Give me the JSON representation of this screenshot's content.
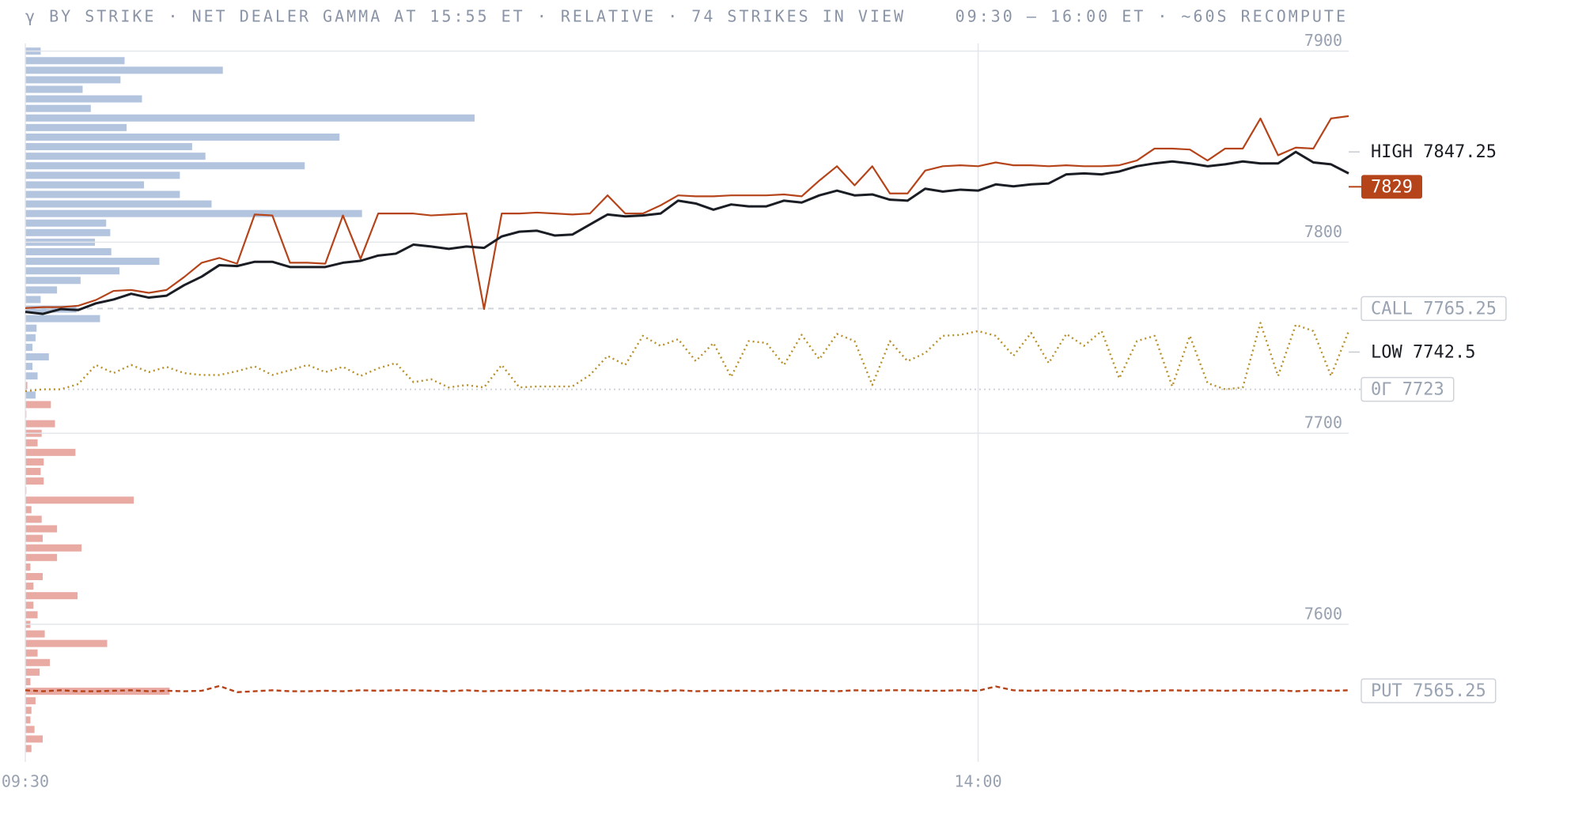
{
  "chart_data": {
    "type": "line",
    "title": "γ BY STRIKE · NET DEALER GAMMA AT 15:55 ET · RELATIVE · 74 STRIKES IN VIEW",
    "subtitle": "09:30 – 16:00 ET · ~60S RECOMPUTE",
    "x": [
      "09:30",
      "09:35",
      "09:40",
      "09:45",
      "09:50",
      "09:55",
      "10:00",
      "10:05",
      "10:10",
      "10:15",
      "10:20",
      "10:25",
      "10:30",
      "10:35",
      "10:40",
      "10:45",
      "10:50",
      "10:55",
      "11:00",
      "11:05",
      "11:10",
      "11:15",
      "11:20",
      "11:25",
      "11:30",
      "11:35",
      "11:40",
      "11:45",
      "11:50",
      "11:55",
      "12:00",
      "12:05",
      "12:10",
      "12:15",
      "12:20",
      "12:25",
      "12:30",
      "12:35",
      "12:40",
      "12:45",
      "12:50",
      "12:55",
      "13:00",
      "13:05",
      "13:10",
      "13:15",
      "13:20",
      "13:25",
      "13:30",
      "13:35",
      "13:40",
      "13:45",
      "13:50",
      "13:55",
      "14:00",
      "14:05",
      "14:10",
      "14:15",
      "14:20",
      "14:25",
      "14:30",
      "14:35",
      "14:40",
      "14:45",
      "14:50",
      "14:55",
      "15:00",
      "15:05",
      "15:10",
      "15:15",
      "15:20",
      "15:25",
      "15:30",
      "15:35",
      "15:40",
      "15:45"
    ],
    "xlim": [
      "09:30",
      "15:45"
    ],
    "xticks": [
      "09:30",
      "14:00"
    ],
    "ylim": [
      7528,
      7904
    ],
    "yticks": [
      7900,
      7800,
      7700,
      7600
    ],
    "grid": true,
    "series": [
      {
        "color": "#b8902a",
        "dash": "dotted",
        "values": [
          7722,
          7723,
          7723,
          7725.75,
          7735.75,
          7731.5,
          7735.75,
          7732,
          7734.75,
          7731.5,
          7730.5,
          7730.5,
          7732.5,
          7735,
          7730.5,
          7733,
          7735.75,
          7732,
          7734.75,
          7730,
          7734,
          7736.75,
          7726.75,
          7728.25,
          7724,
          7725.25,
          7724,
          7735.75,
          7724,
          7724.5,
          7724.5,
          7724.5,
          7730.5,
          7740.5,
          7735.75,
          7751,
          7745.75,
          7749.25,
          7737.75,
          7747.25,
          7729.5,
          7748.25,
          7747.25,
          7735.75,
          7751.5,
          7738.75,
          7752,
          7748.25,
          7725.25,
          7748.25,
          7737.75,
          7742,
          7751,
          7751.5,
          7753.5,
          7751,
          7740.5,
          7752.5,
          7736.75,
          7752,
          7745.75,
          7753.5,
          7728.75,
          7748.25,
          7751,
          7724.5,
          7751,
          7726.25,
          7723,
          7724,
          7757.75,
          7730,
          7756.75,
          7753.5,
          7730,
          7753.5
        ]
      },
      {
        "color": "#b5441a",
        "dash": "dashed",
        "values": [
          7565.5,
          7565,
          7565.5,
          7565,
          7565,
          7565.25,
          7565.5,
          7565,
          7565.25,
          7565,
          7565.25,
          7567.75,
          7564.5,
          7565,
          7565.5,
          7565,
          7565,
          7565.25,
          7565,
          7565.5,
          7565.25,
          7565.5,
          7565.5,
          7565.25,
          7565,
          7565.5,
          7565,
          7565.25,
          7565.25,
          7565.5,
          7565.25,
          7565,
          7565.5,
          7565.25,
          7565.25,
          7565.5,
          7565,
          7565.5,
          7565,
          7565.25,
          7565.25,
          7565.25,
          7565,
          7565.5,
          7565.25,
          7565.25,
          7565,
          7565.5,
          7565.25,
          7565.5,
          7565.5,
          7565.25,
          7565.25,
          7565.5,
          7565.25,
          7567.5,
          7565.5,
          7565.25,
          7565.5,
          7565.25,
          7565.5,
          7565.25,
          7565.5,
          7565,
          7565.25,
          7565.5,
          7565.25,
          7565.5,
          7565.25,
          7565.5,
          7565.25,
          7565.5,
          7565,
          7565.5,
          7565.25,
          7565.5
        ]
      },
      {
        "color": "#b5441a",
        "dash": "solid",
        "values": [
          7765.5,
          7766,
          7766,
          7766.75,
          7769.75,
          7774.5,
          7775,
          7773.5,
          7775,
          7781.75,
          7789.25,
          7791.75,
          7788.75,
          7814.5,
          7814,
          7789.25,
          7789.25,
          7788.75,
          7814,
          7791.25,
          7815,
          7815,
          7815,
          7814,
          7814.5,
          7815,
          7765,
          7815,
          7815,
          7815.5,
          7815,
          7814.5,
          7815,
          7824.5,
          7815,
          7815,
          7819.25,
          7824.5,
          7824,
          7824,
          7824.5,
          7824.5,
          7824.5,
          7825,
          7824,
          7832.25,
          7839.75,
          7829.75,
          7839.75,
          7825.5,
          7825.5,
          7837.5,
          7839.75,
          7840.25,
          7839.75,
          7841.75,
          7840.25,
          7840.25,
          7839.75,
          7840.25,
          7839.75,
          7839.75,
          7840.25,
          7842.75,
          7849,
          7849,
          7848.5,
          7842.75,
          7849,
          7849,
          7864.75,
          7845.5,
          7849.5,
          7849,
          7864.75,
          7866
        ]
      },
      {
        "color": "#1a1d24",
        "dash": "solid",
        "values": [
          7763.5,
          7762.5,
          7765,
          7764.5,
          7768,
          7770,
          7773,
          7771,
          7772,
          7777.5,
          7782,
          7788,
          7787.5,
          7789.75,
          7789.75,
          7787,
          7787,
          7787,
          7789.25,
          7790.25,
          7793,
          7794,
          7798.75,
          7797.75,
          7796.5,
          7797.75,
          7797,
          7803,
          7805.5,
          7806,
          7803.5,
          7804,
          7809.25,
          7814.5,
          7813.5,
          7814,
          7815,
          7821.75,
          7820.25,
          7817,
          7819.75,
          7818.75,
          7818.75,
          7821.75,
          7820.75,
          7824.5,
          7827,
          7824.5,
          7825,
          7822.25,
          7821.75,
          7828,
          7826.5,
          7827.5,
          7827,
          7830.25,
          7829.25,
          7830.25,
          7830.75,
          7835.5,
          7836,
          7835.5,
          7837,
          7839.75,
          7841.25,
          7842.25,
          7841.25,
          7839.75,
          7840.75,
          7842.25,
          7841.25,
          7841.25,
          7847.25,
          7841.75,
          7840.75,
          7836
        ]
      }
    ],
    "strike_bars": {
      "positive_color": "#b3c4de",
      "negative_color": "#e8aaa3",
      "strikes": [
        7900,
        7895,
        7890,
        7885,
        7880,
        7875,
        7870,
        7865,
        7860,
        7855,
        7850,
        7845,
        7840,
        7835,
        7830,
        7825,
        7820,
        7815,
        7810,
        7805,
        7800,
        7795,
        7790,
        7785,
        7780,
        7775,
        7770,
        7765,
        7760,
        7755,
        7750,
        7745,
        7740,
        7735,
        7730,
        7725,
        7720,
        7715,
        7710,
        7705,
        7700,
        7695,
        7690,
        7685,
        7680,
        7675,
        7670,
        7665,
        7660,
        7655,
        7650,
        7645,
        7640,
        7635,
        7630,
        7625,
        7620,
        7615,
        7610,
        7605,
        7600,
        7595,
        7590,
        7585,
        7580,
        7575,
        7570,
        7565,
        7560,
        7555,
        7550,
        7545,
        7540,
        7535
      ],
      "values": [
        15,
        97,
        193,
        93,
        56,
        114,
        64,
        439,
        99,
        307,
        163,
        176,
        273,
        151,
        116,
        151,
        182,
        329,
        79,
        83,
        68,
        84,
        131,
        92,
        54,
        31,
        15,
        50,
        73,
        11,
        10,
        7,
        23,
        7,
        12,
        -2,
        10,
        -25,
        -1,
        -29,
        -16,
        -12,
        -49,
        -18,
        -15,
        -18,
        -1,
        -106,
        -6,
        -16,
        -31,
        -17,
        -55,
        -31,
        -5,
        -17,
        -8,
        -51,
        -8,
        -12,
        -5,
        -19,
        -80,
        -12,
        -24,
        -14,
        -5,
        -141,
        -10,
        -6,
        -5,
        -9,
        -17,
        -6
      ]
    },
    "levels": [
      {
        "label": "HIGH",
        "value": 7847.25,
        "style": "plain"
      },
      {
        "value": 7829,
        "style": "badge",
        "color": "#b5441a"
      },
      {
        "label": "CALL",
        "value": 7765.25,
        "style": "box",
        "line": "dashed"
      },
      {
        "label": "LOW",
        "value": 7742.5,
        "style": "plain"
      },
      {
        "label": "0Γ",
        "value": 7723,
        "style": "box",
        "line": "dotted"
      },
      {
        "label": "PUT",
        "value": 7565.25,
        "style": "box"
      }
    ]
  }
}
